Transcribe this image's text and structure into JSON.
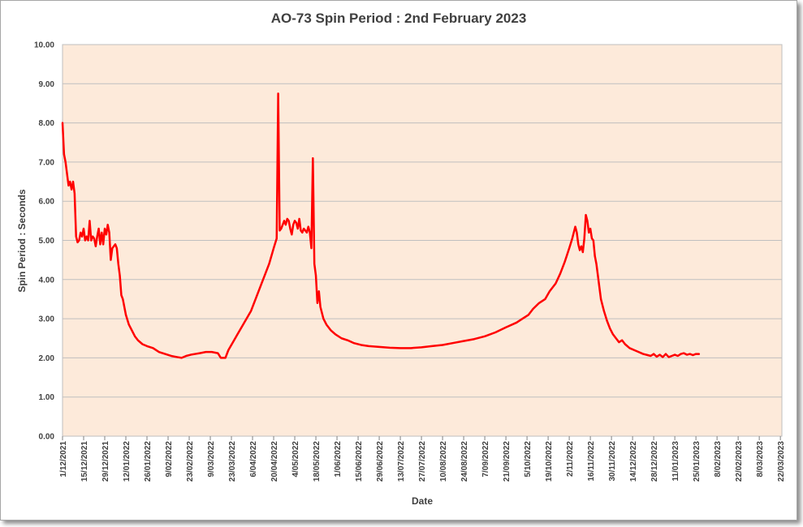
{
  "chart_data": {
    "type": "line",
    "title": "AO-73 Spin Period : 2nd February 2023",
    "xlabel": "Date",
    "ylabel": "Spin Period : Seconds",
    "ylim": [
      0,
      10
    ],
    "yticks": [
      "0.00",
      "1.00",
      "2.00",
      "3.00",
      "4.00",
      "5.00",
      "6.00",
      "7.00",
      "8.00",
      "9.00",
      "10.00"
    ],
    "xlim": [
      "2021-12-01",
      "2023-03-23"
    ],
    "xtick_dates": [
      "2021-12-01",
      "2021-12-15",
      "2021-12-29",
      "2022-01-12",
      "2022-01-26",
      "2022-02-09",
      "2022-02-23",
      "2022-03-09",
      "2022-03-23",
      "2022-04-06",
      "2022-04-20",
      "2022-05-04",
      "2022-05-18",
      "2022-06-01",
      "2022-06-15",
      "2022-06-29",
      "2022-07-13",
      "2022-07-27",
      "2022-08-10",
      "2022-08-24",
      "2022-09-07",
      "2022-09-21",
      "2022-10-05",
      "2022-10-19",
      "2022-11-02",
      "2022-11-16",
      "2022-11-30",
      "2022-12-14",
      "2022-12-28",
      "2023-01-11",
      "2023-01-25",
      "2023-02-08",
      "2023-02-22",
      "2023-03-08",
      "2023-03-22"
    ],
    "xtick_labels": [
      "1/12/2021",
      "15/12/2021",
      "29/12/2021",
      "12/01/2022",
      "26/01/2022",
      "9/02/2022",
      "23/02/2022",
      "9/03/2022",
      "23/03/2022",
      "6/04/2022",
      "20/04/2022",
      "4/05/2022",
      "18/05/2022",
      "1/06/2022",
      "15/06/2022",
      "29/06/2022",
      "13/07/2022",
      "27/07/2022",
      "10/08/2022",
      "24/08/2022",
      "7/09/2022",
      "21/09/2022",
      "5/10/2022",
      "19/10/2022",
      "2/11/2022",
      "16/11/2022",
      "30/11/2022",
      "14/12/2022",
      "28/12/2022",
      "11/01/2023",
      "25/01/2023",
      "8/02/2023",
      "22/02/2023",
      "8/03/2023",
      "22/03/2023"
    ],
    "grid": true,
    "series": [
      {
        "color": "#ff0000",
        "points": [
          [
            "2021-12-01",
            8.0
          ],
          [
            "2021-12-02",
            7.2
          ],
          [
            "2021-12-03",
            7.0
          ],
          [
            "2021-12-04",
            6.7
          ],
          [
            "2021-12-05",
            6.4
          ],
          [
            "2021-12-06",
            6.5
          ],
          [
            "2021-12-07",
            6.3
          ],
          [
            "2021-12-08",
            6.5
          ],
          [
            "2021-12-09",
            6.2
          ],
          [
            "2021-12-10",
            5.1
          ],
          [
            "2021-12-11",
            4.95
          ],
          [
            "2021-12-12",
            5.0
          ],
          [
            "2021-12-13",
            5.2
          ],
          [
            "2021-12-14",
            5.1
          ],
          [
            "2021-12-15",
            5.3
          ],
          [
            "2021-12-16",
            5.0
          ],
          [
            "2021-12-17",
            5.1
          ],
          [
            "2021-12-18",
            5.0
          ],
          [
            "2021-12-19",
            5.5
          ],
          [
            "2021-12-20",
            5.0
          ],
          [
            "2021-12-21",
            5.1
          ],
          [
            "2021-12-22",
            5.05
          ],
          [
            "2021-12-23",
            4.85
          ],
          [
            "2021-12-24",
            5.1
          ],
          [
            "2021-12-25",
            5.3
          ],
          [
            "2021-12-26",
            4.9
          ],
          [
            "2021-12-27",
            5.2
          ],
          [
            "2021-12-28",
            4.9
          ],
          [
            "2021-12-29",
            5.3
          ],
          [
            "2021-12-30",
            5.15
          ],
          [
            "2021-12-31",
            5.4
          ],
          [
            "2022-01-01",
            5.2
          ],
          [
            "2022-01-02",
            4.5
          ],
          [
            "2022-01-03",
            4.8
          ],
          [
            "2022-01-04",
            4.85
          ],
          [
            "2022-01-05",
            4.9
          ],
          [
            "2022-01-06",
            4.8
          ],
          [
            "2022-01-07",
            4.4
          ],
          [
            "2022-01-08",
            4.1
          ],
          [
            "2022-01-09",
            3.6
          ],
          [
            "2022-01-10",
            3.5
          ],
          [
            "2022-01-11",
            3.3
          ],
          [
            "2022-01-12",
            3.1
          ],
          [
            "2022-01-14",
            2.85
          ],
          [
            "2022-01-16",
            2.7
          ],
          [
            "2022-01-18",
            2.55
          ],
          [
            "2022-01-20",
            2.45
          ],
          [
            "2022-01-23",
            2.35
          ],
          [
            "2022-01-26",
            2.3
          ],
          [
            "2022-01-30",
            2.25
          ],
          [
            "2022-02-03",
            2.15
          ],
          [
            "2022-02-07",
            2.1
          ],
          [
            "2022-02-11",
            2.05
          ],
          [
            "2022-02-15",
            2.02
          ],
          [
            "2022-02-18",
            2.0
          ],
          [
            "2022-02-21",
            2.05
          ],
          [
            "2022-02-24",
            2.08
          ],
          [
            "2022-02-27",
            2.1
          ],
          [
            "2022-03-02",
            2.12
          ],
          [
            "2022-03-06",
            2.15
          ],
          [
            "2022-03-10",
            2.15
          ],
          [
            "2022-03-14",
            2.12
          ],
          [
            "2022-03-16",
            2.0
          ],
          [
            "2022-03-19",
            2.0
          ],
          [
            "2022-03-21",
            2.2
          ],
          [
            "2022-03-24",
            2.4
          ],
          [
            "2022-03-27",
            2.6
          ],
          [
            "2022-03-30",
            2.8
          ],
          [
            "2022-04-02",
            3.0
          ],
          [
            "2022-04-05",
            3.2
          ],
          [
            "2022-04-08",
            3.5
          ],
          [
            "2022-04-11",
            3.8
          ],
          [
            "2022-04-14",
            4.1
          ],
          [
            "2022-04-17",
            4.4
          ],
          [
            "2022-04-20",
            4.8
          ],
          [
            "2022-04-22",
            5.05
          ],
          [
            "2022-04-23",
            8.75
          ],
          [
            "2022-04-24",
            5.25
          ],
          [
            "2022-04-25",
            5.3
          ],
          [
            "2022-04-26",
            5.4
          ],
          [
            "2022-04-27",
            5.5
          ],
          [
            "2022-04-28",
            5.4
          ],
          [
            "2022-04-29",
            5.55
          ],
          [
            "2022-04-30",
            5.5
          ],
          [
            "2022-05-01",
            5.3
          ],
          [
            "2022-05-02",
            5.15
          ],
          [
            "2022-05-03",
            5.4
          ],
          [
            "2022-05-04",
            5.5
          ],
          [
            "2022-05-05",
            5.45
          ],
          [
            "2022-05-06",
            5.3
          ],
          [
            "2022-05-07",
            5.55
          ],
          [
            "2022-05-08",
            5.25
          ],
          [
            "2022-05-09",
            5.2
          ],
          [
            "2022-05-10",
            5.3
          ],
          [
            "2022-05-11",
            5.25
          ],
          [
            "2022-05-12",
            5.2
          ],
          [
            "2022-05-13",
            5.35
          ],
          [
            "2022-05-14",
            5.2
          ],
          [
            "2022-05-15",
            4.8
          ],
          [
            "2022-05-16",
            7.1
          ],
          [
            "2022-05-17",
            4.4
          ],
          [
            "2022-05-18",
            4.1
          ],
          [
            "2022-05-19",
            3.4
          ],
          [
            "2022-05-20",
            3.7
          ],
          [
            "2022-05-21",
            3.3
          ],
          [
            "2022-05-23",
            3.0
          ],
          [
            "2022-05-25",
            2.85
          ],
          [
            "2022-05-28",
            2.7
          ],
          [
            "2022-05-31",
            2.6
          ],
          [
            "2022-06-04",
            2.5
          ],
          [
            "2022-06-08",
            2.45
          ],
          [
            "2022-06-12",
            2.38
          ],
          [
            "2022-06-17",
            2.33
          ],
          [
            "2022-06-22",
            2.3
          ],
          [
            "2022-06-29",
            2.28
          ],
          [
            "2022-07-06",
            2.26
          ],
          [
            "2022-07-13",
            2.25
          ],
          [
            "2022-07-20",
            2.25
          ],
          [
            "2022-07-27",
            2.27
          ],
          [
            "2022-08-03",
            2.3
          ],
          [
            "2022-08-10",
            2.33
          ],
          [
            "2022-08-17",
            2.38
          ],
          [
            "2022-08-24",
            2.43
          ],
          [
            "2022-08-31",
            2.48
          ],
          [
            "2022-09-07",
            2.55
          ],
          [
            "2022-09-14",
            2.65
          ],
          [
            "2022-09-21",
            2.78
          ],
          [
            "2022-09-28",
            2.9
          ],
          [
            "2022-10-02",
            3.0
          ],
          [
            "2022-10-06",
            3.1
          ],
          [
            "2022-10-09",
            3.25
          ],
          [
            "2022-10-13",
            3.4
          ],
          [
            "2022-10-17",
            3.5
          ],
          [
            "2022-10-20",
            3.7
          ],
          [
            "2022-10-24",
            3.9
          ],
          [
            "2022-10-27",
            4.15
          ],
          [
            "2022-10-30",
            4.45
          ],
          [
            "2022-11-02",
            4.8
          ],
          [
            "2022-11-04",
            5.05
          ],
          [
            "2022-11-06",
            5.35
          ],
          [
            "2022-11-07",
            5.2
          ],
          [
            "2022-11-08",
            4.9
          ],
          [
            "2022-11-09",
            4.75
          ],
          [
            "2022-11-10",
            4.85
          ],
          [
            "2022-11-11",
            4.7
          ],
          [
            "2022-11-12",
            5.05
          ],
          [
            "2022-11-13",
            5.65
          ],
          [
            "2022-11-14",
            5.5
          ],
          [
            "2022-11-15",
            5.2
          ],
          [
            "2022-11-16",
            5.3
          ],
          [
            "2022-11-17",
            5.05
          ],
          [
            "2022-11-18",
            5.0
          ],
          [
            "2022-11-19",
            4.6
          ],
          [
            "2022-11-20",
            4.4
          ],
          [
            "2022-11-21",
            4.1
          ],
          [
            "2022-11-22",
            3.8
          ],
          [
            "2022-11-23",
            3.5
          ],
          [
            "2022-11-25",
            3.2
          ],
          [
            "2022-11-27",
            2.95
          ],
          [
            "2022-11-29",
            2.75
          ],
          [
            "2022-12-01",
            2.6
          ],
          [
            "2022-12-03",
            2.5
          ],
          [
            "2022-12-05",
            2.4
          ],
          [
            "2022-12-07",
            2.45
          ],
          [
            "2022-12-09",
            2.35
          ],
          [
            "2022-12-12",
            2.25
          ],
          [
            "2022-12-15",
            2.2
          ],
          [
            "2022-12-18",
            2.15
          ],
          [
            "2022-12-21",
            2.1
          ],
          [
            "2022-12-24",
            2.07
          ],
          [
            "2022-12-26",
            2.05
          ],
          [
            "2022-12-28",
            2.1
          ],
          [
            "2022-12-30",
            2.03
          ],
          [
            "2023-01-01",
            2.08
          ],
          [
            "2023-01-03",
            2.02
          ],
          [
            "2023-01-05",
            2.1
          ],
          [
            "2023-01-07",
            2.02
          ],
          [
            "2023-01-09",
            2.05
          ],
          [
            "2023-01-11",
            2.08
          ],
          [
            "2023-01-13",
            2.05
          ],
          [
            "2023-01-15",
            2.1
          ],
          [
            "2023-01-17",
            2.12
          ],
          [
            "2023-01-19",
            2.08
          ],
          [
            "2023-01-21",
            2.1
          ],
          [
            "2023-01-23",
            2.07
          ],
          [
            "2023-01-25",
            2.1
          ],
          [
            "2023-01-27",
            2.1
          ]
        ]
      }
    ]
  }
}
